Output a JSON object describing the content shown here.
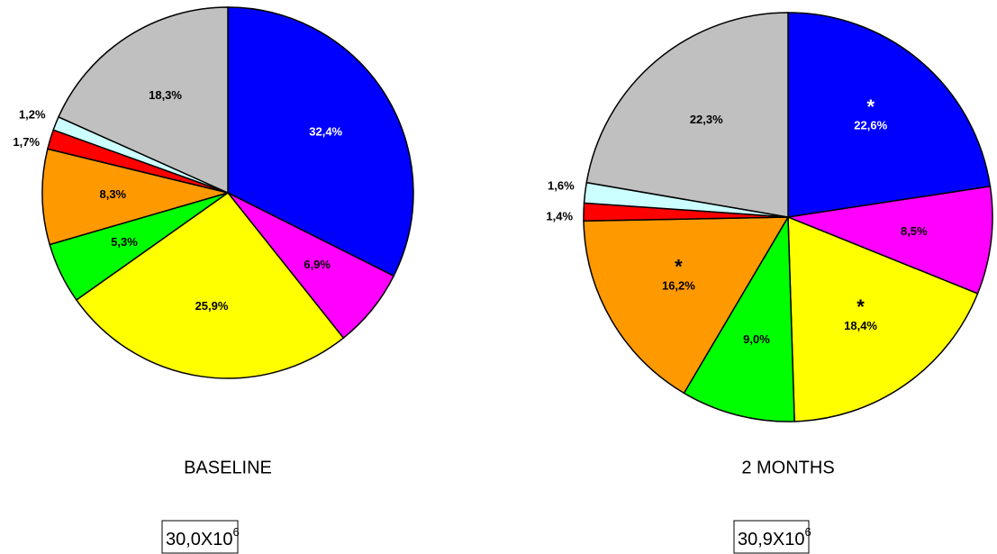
{
  "chart_data": [
    {
      "type": "pie",
      "title": "BASELINE",
      "values": [
        32.4,
        6.9,
        25.9,
        5.3,
        8.3,
        1.7,
        1.2,
        18.3
      ],
      "value_labels": [
        "32,4%",
        "6,9%",
        "25,9%",
        "5,3%",
        "8,3%",
        "1,7%",
        "1,2%",
        "18,3%"
      ],
      "colors": [
        "#0000ff",
        "#ff00ff",
        "#ffff00",
        "#00ff00",
        "#ff9900",
        "#ff0000",
        "#ccffff",
        "#c0c0c0"
      ],
      "label_colors": [
        "#ffffff",
        "#000000",
        "#000000",
        "#000000",
        "#000000",
        "#000000",
        "#000000",
        "#000000"
      ],
      "stars": [
        null,
        null,
        null,
        null,
        null,
        null,
        null,
        null
      ],
      "total": {
        "base": "30,0X10",
        "exponent": "6"
      }
    },
    {
      "type": "pie",
      "title": "2 MONTHS",
      "values": [
        22.6,
        8.5,
        18.4,
        9.0,
        16.2,
        1.4,
        1.6,
        22.3
      ],
      "value_labels": [
        "22,6%",
        "8,5%",
        "18,4%",
        "9,0%",
        "16,2%",
        "1,4%",
        "1,6%",
        "22,3%"
      ],
      "colors": [
        "#0000ff",
        "#ff00ff",
        "#ffff00",
        "#00ff00",
        "#ff9900",
        "#ff0000",
        "#ccffff",
        "#c0c0c0"
      ],
      "label_colors": [
        "#ffffff",
        "#000000",
        "#000000",
        "#000000",
        "#000000",
        "#000000",
        "#000000",
        "#000000"
      ],
      "stars": [
        "*",
        null,
        "*",
        null,
        "*",
        null,
        null,
        null
      ],
      "total": {
        "base": "30,9X10",
        "exponent": "6"
      }
    }
  ]
}
